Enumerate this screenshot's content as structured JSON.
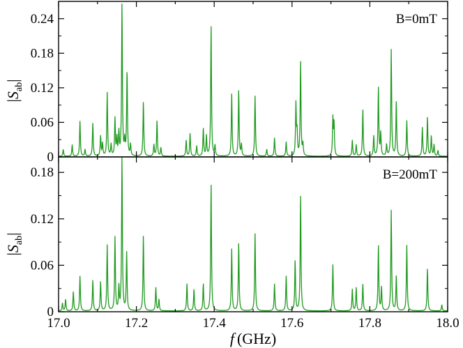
{
  "chart_data": [
    {
      "type": "line",
      "annotation": "B=0mT",
      "ylabel": {
        "symbol": "S",
        "subscript": "ab"
      },
      "xlim": [
        17.0,
        18.0
      ],
      "ylim": [
        0,
        0.27
      ],
      "yticks": [
        "0",
        "0.06",
        "0.12",
        "0.18",
        "0.24"
      ],
      "ytick_values": [
        0,
        0.06,
        0.12,
        0.18,
        0.24
      ],
      "line_color": "#1f9a1f",
      "baseline": 0.001,
      "peaks": [
        {
          "x": 17.012,
          "y": 0.012
        },
        {
          "x": 17.035,
          "y": 0.02
        },
        {
          "x": 17.055,
          "y": 0.061
        },
        {
          "x": 17.068,
          "y": 0.012
        },
        {
          "x": 17.088,
          "y": 0.058
        },
        {
          "x": 17.108,
          "y": 0.035
        },
        {
          "x": 17.113,
          "y": 0.022
        },
        {
          "x": 17.125,
          "y": 0.11
        },
        {
          "x": 17.135,
          "y": 0.02
        },
        {
          "x": 17.145,
          "y": 0.065
        },
        {
          "x": 17.15,
          "y": 0.03
        },
        {
          "x": 17.155,
          "y": 0.04
        },
        {
          "x": 17.163,
          "y": 0.265
        },
        {
          "x": 17.17,
          "y": 0.025
        },
        {
          "x": 17.176,
          "y": 0.15
        },
        {
          "x": 17.185,
          "y": 0.02
        },
        {
          "x": 17.218,
          "y": 0.095
        },
        {
          "x": 17.245,
          "y": 0.02
        },
        {
          "x": 17.253,
          "y": 0.062
        },
        {
          "x": 17.263,
          "y": 0.015
        },
        {
          "x": 17.328,
          "y": 0.028
        },
        {
          "x": 17.338,
          "y": 0.04
        },
        {
          "x": 17.355,
          "y": 0.018
        },
        {
          "x": 17.372,
          "y": 0.048
        },
        {
          "x": 17.38,
          "y": 0.035
        },
        {
          "x": 17.392,
          "y": 0.228
        },
        {
          "x": 17.402,
          "y": 0.018
        },
        {
          "x": 17.445,
          "y": 0.108
        },
        {
          "x": 17.463,
          "y": 0.115
        },
        {
          "x": 17.47,
          "y": 0.02
        },
        {
          "x": 17.505,
          "y": 0.105
        },
        {
          "x": 17.535,
          "y": 0.012
        },
        {
          "x": 17.555,
          "y": 0.032
        },
        {
          "x": 17.585,
          "y": 0.025
        },
        {
          "x": 17.61,
          "y": 0.09
        },
        {
          "x": 17.613,
          "y": 0.04
        },
        {
          "x": 17.622,
          "y": 0.165
        },
        {
          "x": 17.628,
          "y": 0.02
        },
        {
          "x": 17.705,
          "y": 0.065
        },
        {
          "x": 17.708,
          "y": 0.055
        },
        {
          "x": 17.755,
          "y": 0.028
        },
        {
          "x": 17.765,
          "y": 0.02
        },
        {
          "x": 17.782,
          "y": 0.082
        },
        {
          "x": 17.81,
          "y": 0.035
        },
        {
          "x": 17.822,
          "y": 0.12
        },
        {
          "x": 17.828,
          "y": 0.04
        },
        {
          "x": 17.843,
          "y": 0.02
        },
        {
          "x": 17.855,
          "y": 0.185
        },
        {
          "x": 17.868,
          "y": 0.095
        },
        {
          "x": 17.895,
          "y": 0.062
        },
        {
          "x": 17.935,
          "y": 0.05
        },
        {
          "x": 17.948,
          "y": 0.068
        },
        {
          "x": 17.958,
          "y": 0.035
        },
        {
          "x": 17.965,
          "y": 0.02
        },
        {
          "x": 17.975,
          "y": 0.01
        }
      ]
    },
    {
      "type": "line",
      "annotation": "B=200mT",
      "ylabel": {
        "symbol": "S",
        "subscript": "ab"
      },
      "xlabel": {
        "symbol": "f",
        "unit": "(GHz)"
      },
      "xlim": [
        17.0,
        18.0
      ],
      "ylim": [
        0,
        0.2
      ],
      "xticks": [
        "17.0",
        "17.2",
        "17.4",
        "17.6",
        "17.8",
        "18.0"
      ],
      "xtick_values": [
        17.0,
        17.2,
        17.4,
        17.6,
        17.8,
        18.0
      ],
      "yticks": [
        "0",
        "0.06",
        "0.12",
        "0.18"
      ],
      "ytick_values": [
        0,
        0.06,
        0.12,
        0.18
      ],
      "line_color": "#1f9a1f",
      "baseline": 0.001,
      "peaks": [
        {
          "x": 17.01,
          "y": 0.01
        },
        {
          "x": 17.018,
          "y": 0.015
        },
        {
          "x": 17.038,
          "y": 0.025
        },
        {
          "x": 17.055,
          "y": 0.045
        },
        {
          "x": 17.088,
          "y": 0.04
        },
        {
          "x": 17.108,
          "y": 0.038
        },
        {
          "x": 17.125,
          "y": 0.085
        },
        {
          "x": 17.145,
          "y": 0.095
        },
        {
          "x": 17.155,
          "y": 0.03
        },
        {
          "x": 17.163,
          "y": 0.2
        },
        {
          "x": 17.175,
          "y": 0.075
        },
        {
          "x": 17.218,
          "y": 0.098
        },
        {
          "x": 17.25,
          "y": 0.03
        },
        {
          "x": 17.258,
          "y": 0.015
        },
        {
          "x": 17.33,
          "y": 0.035
        },
        {
          "x": 17.348,
          "y": 0.028
        },
        {
          "x": 17.372,
          "y": 0.035
        },
        {
          "x": 17.392,
          "y": 0.165
        },
        {
          "x": 17.445,
          "y": 0.08
        },
        {
          "x": 17.463,
          "y": 0.088
        },
        {
          "x": 17.505,
          "y": 0.1
        },
        {
          "x": 17.555,
          "y": 0.035
        },
        {
          "x": 17.585,
          "y": 0.045
        },
        {
          "x": 17.608,
          "y": 0.065
        },
        {
          "x": 17.622,
          "y": 0.15
        },
        {
          "x": 17.705,
          "y": 0.06
        },
        {
          "x": 17.755,
          "y": 0.028
        },
        {
          "x": 17.765,
          "y": 0.03
        },
        {
          "x": 17.782,
          "y": 0.035
        },
        {
          "x": 17.822,
          "y": 0.085
        },
        {
          "x": 17.83,
          "y": 0.03
        },
        {
          "x": 17.855,
          "y": 0.13
        },
        {
          "x": 17.868,
          "y": 0.045
        },
        {
          "x": 17.895,
          "y": 0.085
        },
        {
          "x": 17.948,
          "y": 0.055
        },
        {
          "x": 17.985,
          "y": 0.008
        }
      ]
    }
  ]
}
